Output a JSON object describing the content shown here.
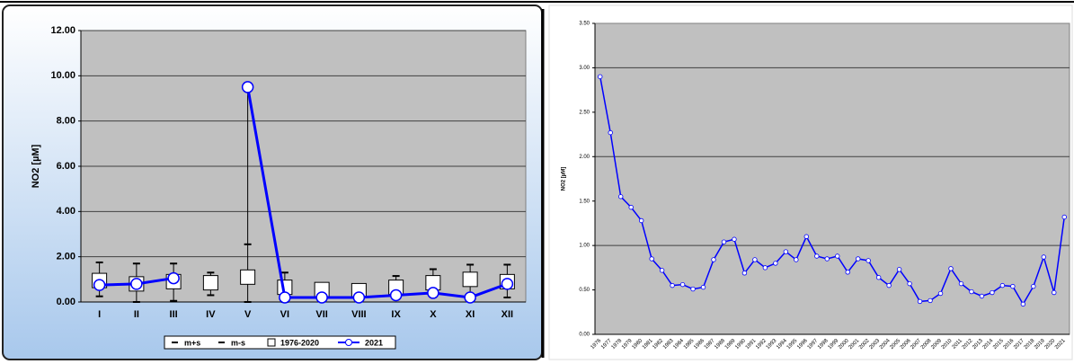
{
  "chart_data": [
    {
      "type": "line",
      "y_label": "NO2 [µM]",
      "categories": [
        "I",
        "II",
        "III",
        "IV",
        "V",
        "VI",
        "VII",
        "VIII",
        "IX",
        "X",
        "XI",
        "XII"
      ],
      "ylim": [
        0,
        12
      ],
      "yticks": [
        {
          "value": 0,
          "label": "0.00"
        },
        {
          "value": 2,
          "label": "2.00"
        },
        {
          "value": 4,
          "label": "4.00"
        },
        {
          "value": 6,
          "label": "6.00"
        },
        {
          "value": 8,
          "label": "8.00"
        },
        {
          "value": 10,
          "label": "10.00"
        },
        {
          "value": 12,
          "label": "12.00"
        }
      ],
      "grid": true,
      "legend": "bottom",
      "series": [
        {
          "name": "m+s",
          "color": "#000000",
          "marker": "dash",
          "values": [
            1.75,
            1.7,
            1.7,
            1.3,
            2.55,
            1.3,
            0.8,
            0.7,
            1.15,
            1.45,
            1.65,
            1.65
          ]
        },
        {
          "name": "m-s",
          "color": "#000000",
          "marker": "dash",
          "values": [
            0.25,
            0.0,
            0.05,
            0.3,
            0.0,
            0.0,
            0.3,
            0.3,
            0.15,
            0.25,
            0.35,
            0.2
          ]
        },
        {
          "name": "1976-2020",
          "color": "#ffffff",
          "marker": "square",
          "values": [
            0.95,
            0.8,
            0.9,
            0.85,
            1.1,
            0.65,
            0.55,
            0.5,
            0.65,
            0.85,
            1.0,
            0.9
          ]
        },
        {
          "name": "2021",
          "color": "#0000ff",
          "marker": "circle",
          "line": true,
          "values": [
            0.75,
            0.8,
            1.05,
            null,
            9.5,
            0.2,
            0.2,
            0.2,
            0.3,
            0.4,
            0.2,
            0.8
          ]
        }
      ]
    },
    {
      "type": "line",
      "y_label": "NO2 [µM]",
      "categories": [
        "1976",
        "1977",
        "1978",
        "1979",
        "1980",
        "1981",
        "1982",
        "1983",
        "1984",
        "1985",
        "1986",
        "1987",
        "1988",
        "1989",
        "1990",
        "1991",
        "1992",
        "1993",
        "1994",
        "1995",
        "1996",
        "1997",
        "1998",
        "1999",
        "2000",
        "2001",
        "2002",
        "2003",
        "2004",
        "2005",
        "2006",
        "2007",
        "2008",
        "2009",
        "2010",
        "2011",
        "2012",
        "2013",
        "2014",
        "2015",
        "2016",
        "2017",
        "2018",
        "2019",
        "2020",
        "2021"
      ],
      "ylim": [
        0,
        3.5
      ],
      "yticks": [
        {
          "value": 0,
          "label": "0.00"
        },
        {
          "value": 0.5,
          "label": "0.50"
        },
        {
          "value": 1,
          "label": "1.00"
        },
        {
          "value": 1.5,
          "label": "1.50"
        },
        {
          "value": 2,
          "label": "2.00"
        },
        {
          "value": 2.5,
          "label": "2.50"
        },
        {
          "value": 3,
          "label": "3.00"
        },
        {
          "value": 3.5,
          "label": "3.50"
        }
      ],
      "grid": true,
      "series": [
        {
          "color": "#0000ff",
          "marker": "circle",
          "line": true,
          "values": [
            2.9,
            2.27,
            1.55,
            1.43,
            1.28,
            0.85,
            0.72,
            0.55,
            0.56,
            0.51,
            0.53,
            0.84,
            1.04,
            1.07,
            0.69,
            0.84,
            0.75,
            0.8,
            0.93,
            0.84,
            1.1,
            0.88,
            0.85,
            0.88,
            0.7,
            0.85,
            0.83,
            0.64,
            0.55,
            0.73,
            0.57,
            0.37,
            0.38,
            0.46,
            0.74,
            0.57,
            0.48,
            0.43,
            0.47,
            0.55,
            0.54,
            0.34,
            0.54,
            0.87,
            0.47,
            1.32
          ]
        }
      ]
    }
  ]
}
